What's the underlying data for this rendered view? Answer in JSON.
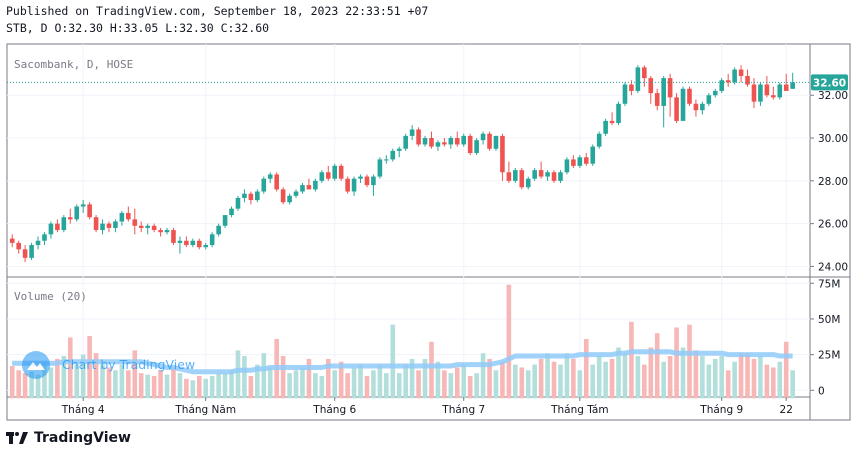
{
  "header": {
    "published": "Published on TradingView.com, September 18, 2023 22:33:51 +07",
    "ohlc": "STB, D O:32.30 H:33.05 L:32.30 C:32.60"
  },
  "footer": {
    "brand": "TradingView"
  },
  "colors": {
    "up": "#26a69a",
    "down": "#ef5350",
    "upVol": "#b2dfdb",
    "downVol": "#f7b7b6",
    "ma": "#90caf9",
    "grid": "#f0f3fa",
    "priceLine": "#26a69a",
    "watermark": "#2196f3"
  },
  "chart_data": [
    {
      "type": "candlestick",
      "title": "Sacombank, D, HOSE",
      "last_price_label": "32.60",
      "x_tick_labels": [
        "Tháng 4",
        "Tháng Năm",
        "Tháng 6",
        "Tháng 7",
        "Tháng Tám",
        "Tháng 9",
        "22"
      ],
      "x_tick_index": [
        11,
        30,
        50,
        70,
        88,
        110,
        120
      ],
      "y_ticks": [
        "24.00",
        "26.00",
        "28.00",
        "30.00",
        "32.00"
      ],
      "ylim": [
        23.6,
        34.3
      ],
      "ohlc": [
        [
          25.3,
          25.5,
          24.9,
          25.1
        ],
        [
          25.1,
          25.2,
          24.6,
          24.8
        ],
        [
          24.8,
          25.0,
          24.2,
          24.4
        ],
        [
          24.4,
          25.1,
          24.3,
          25.0
        ],
        [
          25.0,
          25.4,
          24.8,
          25.2
        ],
        [
          25.2,
          25.6,
          25.0,
          25.5
        ],
        [
          25.5,
          26.1,
          25.3,
          26.0
        ],
        [
          26.0,
          26.2,
          25.6,
          25.7
        ],
        [
          25.7,
          26.4,
          25.6,
          26.3
        ],
        [
          26.3,
          26.7,
          26.0,
          26.2
        ],
        [
          26.2,
          26.9,
          26.1,
          26.8
        ],
        [
          26.8,
          27.1,
          26.5,
          26.9
        ],
        [
          26.9,
          27.0,
          26.2,
          26.3
        ],
        [
          26.3,
          26.4,
          25.6,
          25.7
        ],
        [
          25.7,
          26.2,
          25.5,
          26.0
        ],
        [
          26.0,
          26.1,
          25.6,
          25.8
        ],
        [
          25.8,
          26.2,
          25.6,
          26.1
        ],
        [
          26.1,
          26.6,
          25.9,
          26.5
        ],
        [
          26.5,
          26.8,
          26.1,
          26.2
        ],
        [
          26.2,
          26.7,
          25.5,
          25.9
        ],
        [
          25.9,
          26.1,
          25.6,
          25.8
        ],
        [
          25.8,
          26.0,
          25.5,
          25.9
        ],
        [
          25.9,
          26.0,
          25.6,
          25.7
        ],
        [
          25.7,
          25.8,
          25.4,
          25.6
        ],
        [
          25.6,
          25.8,
          25.5,
          25.7
        ],
        [
          25.7,
          25.8,
          25.0,
          25.1
        ],
        [
          25.1,
          25.4,
          24.6,
          25.2
        ],
        [
          25.2,
          25.4,
          24.9,
          25.0
        ],
        [
          25.0,
          25.3,
          24.9,
          25.2
        ],
        [
          25.2,
          25.3,
          24.8,
          24.9
        ],
        [
          24.9,
          25.1,
          24.8,
          25.0
        ],
        [
          25.0,
          25.6,
          24.9,
          25.5
        ],
        [
          25.5,
          26.0,
          25.4,
          25.9
        ],
        [
          25.9,
          26.4,
          25.8,
          26.4
        ],
        [
          26.4,
          26.8,
          26.3,
          26.7
        ],
        [
          26.7,
          27.3,
          26.6,
          27.2
        ],
        [
          27.2,
          27.6,
          27.0,
          27.4
        ],
        [
          27.4,
          27.5,
          26.9,
          27.1
        ],
        [
          27.1,
          27.6,
          27.0,
          27.5
        ],
        [
          27.5,
          28.2,
          27.4,
          28.1
        ],
        [
          28.1,
          28.4,
          27.9,
          28.3
        ],
        [
          28.3,
          28.4,
          27.5,
          27.6
        ],
        [
          27.6,
          27.7,
          26.9,
          27.0
        ],
        [
          27.0,
          27.4,
          26.9,
          27.3
        ],
        [
          27.3,
          27.6,
          27.2,
          27.5
        ],
        [
          27.5,
          27.9,
          27.4,
          27.8
        ],
        [
          27.8,
          28.1,
          27.6,
          27.6
        ],
        [
          27.6,
          28.1,
          27.5,
          28.0
        ],
        [
          28.0,
          28.5,
          27.9,
          28.4
        ],
        [
          28.4,
          28.7,
          28.0,
          28.1
        ],
        [
          28.1,
          28.8,
          28.0,
          28.7
        ],
        [
          28.7,
          28.8,
          28.0,
          28.1
        ],
        [
          28.1,
          28.2,
          27.4,
          27.5
        ],
        [
          27.5,
          28.2,
          27.3,
          28.1
        ],
        [
          28.1,
          28.3,
          27.9,
          28.2
        ],
        [
          28.2,
          28.3,
          27.7,
          27.8
        ],
        [
          27.8,
          28.3,
          27.3,
          28.2
        ],
        [
          28.2,
          29.1,
          28.1,
          29.0
        ],
        [
          29.0,
          29.2,
          28.8,
          29.0
        ],
        [
          29.0,
          29.5,
          28.9,
          29.4
        ],
        [
          29.4,
          29.6,
          29.1,
          29.5
        ],
        [
          29.5,
          30.2,
          29.4,
          30.1
        ],
        [
          30.1,
          30.6,
          29.9,
          30.4
        ],
        [
          30.4,
          30.5,
          29.6,
          29.7
        ],
        [
          29.7,
          30.1,
          29.6,
          30.0
        ],
        [
          30.0,
          30.3,
          29.5,
          29.6
        ],
        [
          29.6,
          29.9,
          29.4,
          29.8
        ],
        [
          29.8,
          30.0,
          29.6,
          29.7
        ],
        [
          29.7,
          30.1,
          29.5,
          30.0
        ],
        [
          30.0,
          30.3,
          29.6,
          29.7
        ],
        [
          29.7,
          30.2,
          29.6,
          30.1
        ],
        [
          30.1,
          30.2,
          29.2,
          29.3
        ],
        [
          29.3,
          30.0,
          29.2,
          29.9
        ],
        [
          29.9,
          30.3,
          29.7,
          30.2
        ],
        [
          30.2,
          30.3,
          29.4,
          29.5
        ],
        [
          29.5,
          30.1,
          29.4,
          30.1
        ],
        [
          30.1,
          30.2,
          28.0,
          28.4
        ],
        [
          28.4,
          28.9,
          27.9,
          28.0
        ],
        [
          28.0,
          28.6,
          27.9,
          28.5
        ],
        [
          28.5,
          28.6,
          27.6,
          27.7
        ],
        [
          27.7,
          28.2,
          27.6,
          28.1
        ],
        [
          28.1,
          28.6,
          28.0,
          28.5
        ],
        [
          28.5,
          28.9,
          28.1,
          28.2
        ],
        [
          28.2,
          28.5,
          28.0,
          28.4
        ],
        [
          28.4,
          28.5,
          27.9,
          28.0
        ],
        [
          28.0,
          28.5,
          27.9,
          28.4
        ],
        [
          28.4,
          29.1,
          28.3,
          29.0
        ],
        [
          29.0,
          29.2,
          28.6,
          28.7
        ],
        [
          28.7,
          29.2,
          28.6,
          29.1
        ],
        [
          29.1,
          29.3,
          28.7,
          28.8
        ],
        [
          28.8,
          29.7,
          28.7,
          29.6
        ],
        [
          29.6,
          30.3,
          29.5,
          30.2
        ],
        [
          30.2,
          30.9,
          30.1,
          30.8
        ],
        [
          30.8,
          31.2,
          30.6,
          30.7
        ],
        [
          30.7,
          31.7,
          30.6,
          31.6
        ],
        [
          31.6,
          32.6,
          31.5,
          32.5
        ],
        [
          32.5,
          32.7,
          32.0,
          32.2
        ],
        [
          32.2,
          33.4,
          32.1,
          33.3
        ],
        [
          33.3,
          33.4,
          32.4,
          32.8
        ],
        [
          32.8,
          32.9,
          31.6,
          32.1
        ],
        [
          32.1,
          32.3,
          31.3,
          31.5
        ],
        [
          31.5,
          32.9,
          30.5,
          32.8
        ],
        [
          32.8,
          33.0,
          31.0,
          31.9
        ],
        [
          31.9,
          32.1,
          30.7,
          30.8
        ],
        [
          30.8,
          32.4,
          30.9,
          32.3
        ],
        [
          32.3,
          32.4,
          31.5,
          31.6
        ],
        [
          31.6,
          31.8,
          31.0,
          31.3
        ],
        [
          31.3,
          31.7,
          31.1,
          31.6
        ],
        [
          31.6,
          32.1,
          31.5,
          32.0
        ],
        [
          32.0,
          32.3,
          31.9,
          32.2
        ],
        [
          32.2,
          32.8,
          32.1,
          32.7
        ],
        [
          32.7,
          33.0,
          32.4,
          32.6
        ],
        [
          32.6,
          33.3,
          32.5,
          33.2
        ],
        [
          33.2,
          33.4,
          32.6,
          32.9
        ],
        [
          32.9,
          33.2,
          32.4,
          32.5
        ],
        [
          32.5,
          32.8,
          31.4,
          31.7
        ],
        [
          31.7,
          32.6,
          31.5,
          32.5
        ],
        [
          32.5,
          32.9,
          31.9,
          32.0
        ],
        [
          32.0,
          32.4,
          31.8,
          31.9
        ],
        [
          31.9,
          32.6,
          31.8,
          32.5
        ],
        [
          32.5,
          33.0,
          32.3,
          32.2
        ],
        [
          32.3,
          33.05,
          32.3,
          32.6
        ]
      ]
    },
    {
      "type": "bar",
      "title": "Volume (20)",
      "y_ticks": [
        "0",
        "25M",
        "50M",
        "75M"
      ],
      "ylim": [
        -4,
        78
      ],
      "volume_millions": [
        17,
        14,
        12,
        13,
        11,
        20,
        16,
        22,
        24,
        37,
        18,
        25,
        38,
        26,
        18,
        16,
        14,
        18,
        14,
        28,
        12,
        11,
        10,
        14,
        11,
        16,
        12,
        8,
        7,
        10,
        8,
        10,
        12,
        12,
        14,
        28,
        24,
        10,
        18,
        26,
        16,
        36,
        24,
        12,
        14,
        16,
        22,
        12,
        10,
        22,
        14,
        20,
        12,
        16,
        18,
        10,
        14,
        18,
        12,
        46,
        12,
        18,
        22,
        14,
        22,
        34,
        20,
        14,
        12,
        16,
        18,
        10,
        12,
        26,
        22,
        14,
        20,
        74,
        18,
        16,
        14,
        18,
        22,
        26,
        20,
        18,
        26,
        22,
        14,
        36,
        18,
        24,
        20,
        22,
        30,
        26,
        48,
        24,
        18,
        30,
        40,
        20,
        24,
        44,
        30,
        46,
        28,
        24,
        18,
        22,
        24,
        14,
        20,
        26,
        26,
        22,
        24,
        18,
        16,
        20,
        34,
        14
      ],
      "ma_millions": [
        19,
        19,
        19,
        19,
        19,
        19,
        19,
        19,
        20,
        20,
        20,
        20,
        20,
        20,
        20,
        20,
        20,
        20,
        20,
        20,
        20,
        19,
        18,
        17,
        16,
        16,
        15,
        14,
        13,
        13,
        13,
        13,
        13,
        13,
        13,
        14,
        14,
        14,
        15,
        15,
        16,
        16,
        16,
        16,
        16,
        16,
        16,
        16,
        16,
        17,
        17,
        17,
        17,
        17,
        17,
        17,
        17,
        17,
        17,
        17,
        17,
        17,
        17,
        17,
        17,
        17,
        17,
        17,
        17,
        18,
        18,
        18,
        18,
        18,
        18,
        19,
        20,
        22,
        24,
        24,
        24,
        24,
        24,
        24,
        24,
        24,
        24,
        24,
        25,
        25,
        25,
        25,
        25,
        25,
        26,
        26,
        27,
        27,
        27,
        27,
        27,
        27,
        27,
        26,
        26,
        26,
        26,
        26,
        26,
        26,
        26,
        25,
        25,
        25,
        25,
        25,
        25,
        25,
        25,
        24,
        24,
        24
      ]
    }
  ],
  "watermark": "Chart by TradingView"
}
